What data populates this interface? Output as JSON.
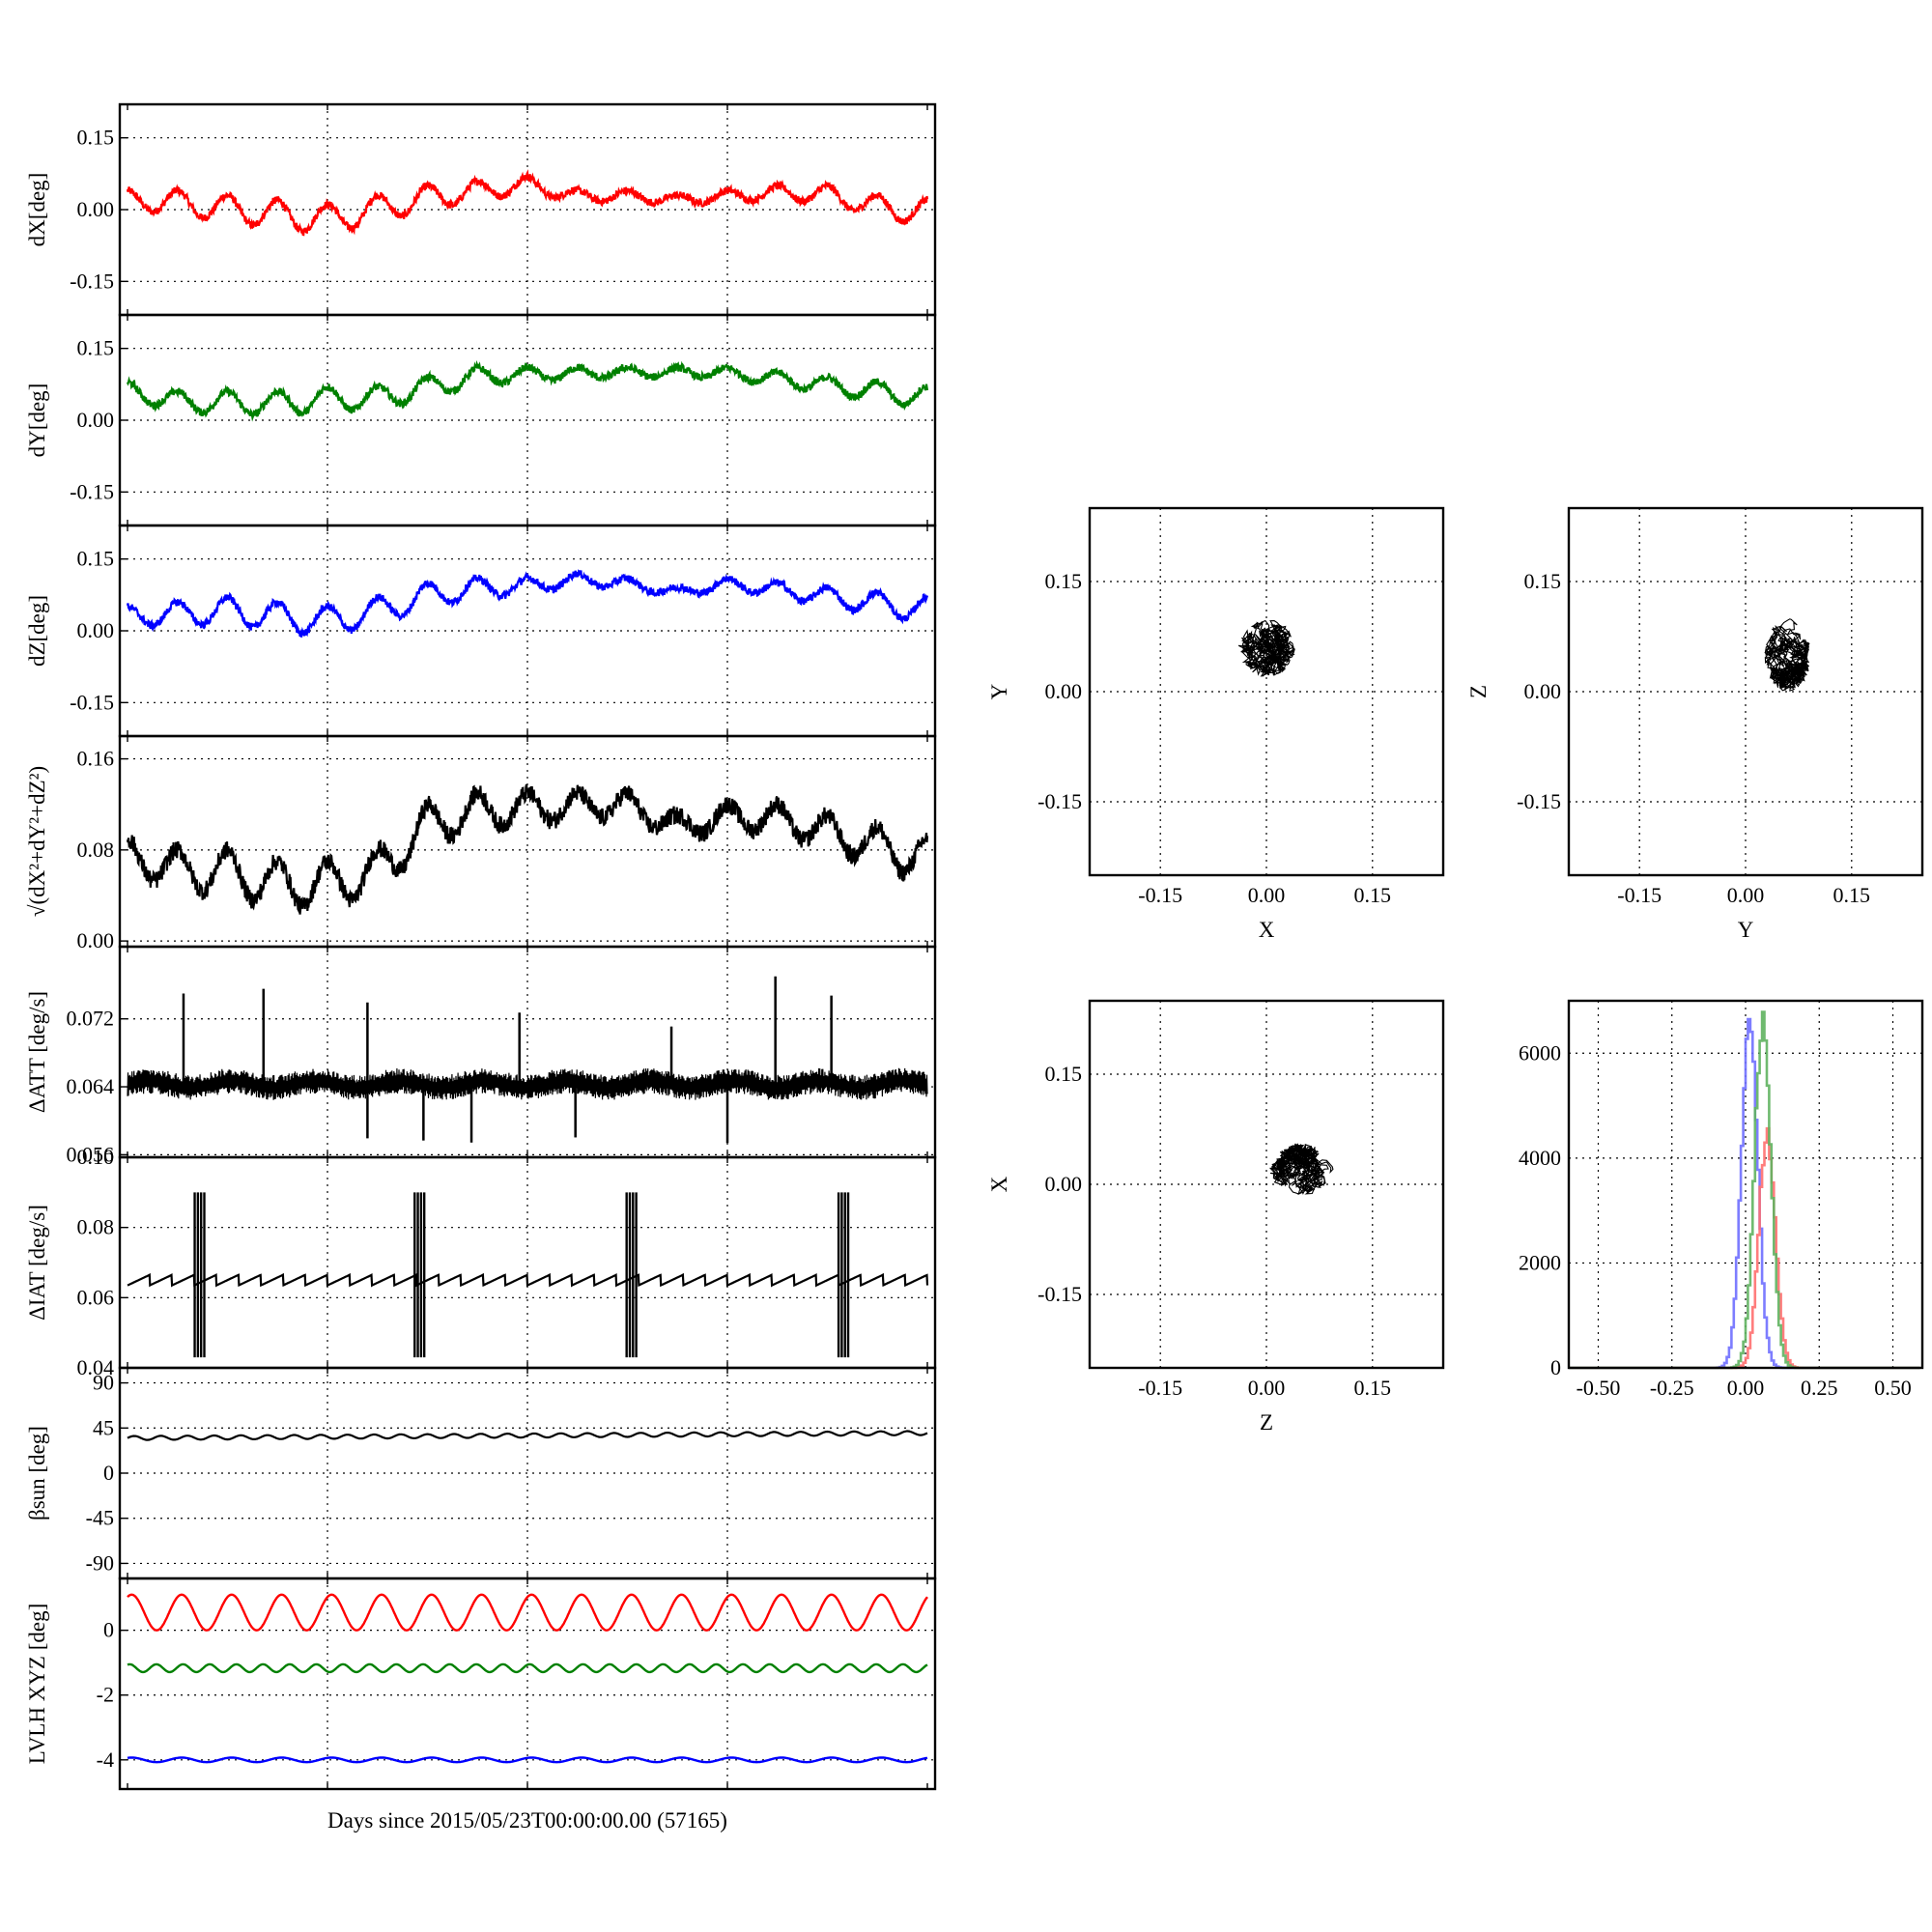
{
  "figure": {
    "xlabel": "Days since 2015/05/23T00:00:00.00 (57165)"
  },
  "chart_data": [
    {
      "type": "line",
      "panel": "dX",
      "ylabel": "dX[deg]",
      "ylim": [
        -0.22,
        0.22
      ],
      "yticks": [
        "0.15",
        "0.00",
        "-0.15"
      ],
      "ytick_values": [
        0.15,
        0.0,
        -0.15
      ],
      "series": [
        {
          "color": "#ff0000",
          "baseline": 0.0,
          "periods": 16,
          "amplitude": [
            0.02,
            0.06
          ],
          "noise": 0.008,
          "peaks": [
            0.04,
            0.04,
            0.03,
            0.02,
            0.01,
            0.03,
            0.05,
            0.06,
            0.07,
            0.04,
            0.04,
            0.03,
            0.04,
            0.05,
            0.05,
            0.03,
            0.02
          ]
        }
      ]
    },
    {
      "type": "line",
      "panel": "dY",
      "ylabel": "dY[deg]",
      "ylim": [
        -0.22,
        0.22
      ],
      "yticks": [
        "0.15",
        "0.00",
        "-0.15"
      ],
      "ytick_values": [
        0.15,
        0.0,
        -0.15
      ],
      "series": [
        {
          "color": "#008000",
          "baseline": 0.06,
          "periods": 16,
          "amplitude": [
            0.02,
            0.05
          ],
          "noise": 0.008,
          "peaks": [
            0.08,
            0.06,
            0.06,
            0.06,
            0.07,
            0.07,
            0.09,
            0.11,
            0.11,
            0.11,
            0.11,
            0.11,
            0.11,
            0.1,
            0.09,
            0.08,
            0.07
          ]
        }
      ]
    },
    {
      "type": "line",
      "panel": "dZ",
      "ylabel": "dZ[deg]",
      "ylim": [
        -0.22,
        0.22
      ],
      "yticks": [
        "0.15",
        "0.00",
        "-0.15"
      ],
      "ytick_values": [
        0.15,
        0.0,
        -0.15
      ],
      "series": [
        {
          "color": "#0000ff",
          "baseline": 0.04,
          "periods": 16,
          "amplitude": [
            0.02,
            0.06
          ],
          "noise": 0.008,
          "peaks": [
            0.05,
            0.06,
            0.07,
            0.06,
            0.05,
            0.07,
            0.1,
            0.11,
            0.11,
            0.12,
            0.11,
            0.09,
            0.11,
            0.1,
            0.09,
            0.08,
            0.07
          ]
        }
      ]
    },
    {
      "type": "line",
      "panel": "dR",
      "ylabel": "√(dX²+dY²+dZ²)",
      "ylim": [
        -0.005,
        0.18
      ],
      "yticks": [
        "0.16",
        "0.08",
        "0.00"
      ],
      "ytick_values": [
        0.16,
        0.08,
        0.0
      ],
      "series": [
        {
          "color": "#000000",
          "baseline": 0.08,
          "periods": 16,
          "amplitude": [
            0.02,
            0.04
          ],
          "noise": 0.008,
          "peaks": [
            0.09,
            0.08,
            0.08,
            0.07,
            0.07,
            0.08,
            0.12,
            0.13,
            0.13,
            0.13,
            0.13,
            0.11,
            0.12,
            0.12,
            0.11,
            0.1,
            0.09
          ]
        }
      ]
    },
    {
      "type": "line",
      "panel": "dATT",
      "ylabel": "ΔATT [deg/s]",
      "ylim": [
        0.0557,
        0.0805
      ],
      "yticks": [
        "0.072",
        "0.064",
        "0.056"
      ],
      "ytick_values": [
        0.072,
        0.064,
        0.056
      ],
      "series": [
        {
          "color": "#000000",
          "baseline": 0.0643,
          "band": 0.0015,
          "spikes_up": [
            0.07,
            0.17,
            0.3,
            0.49,
            0.68,
            0.81,
            0.88
          ],
          "spikes_down": [
            0.3,
            0.37,
            0.43,
            0.56,
            0.75
          ]
        }
      ]
    },
    {
      "type": "line",
      "panel": "dIAT",
      "ylabel": "ΔIAT [deg/s]",
      "ylim": [
        0.04,
        0.1
      ],
      "yticks": [
        "0.10",
        "0.08",
        "0.06",
        "0.04"
      ],
      "ytick_values": [
        0.1,
        0.08,
        0.06,
        0.04
      ],
      "series": [
        {
          "color": "#000000",
          "baseline": 0.065,
          "sawtooth_periods": 36,
          "bursts": [
            0.09,
            0.365,
            0.63,
            0.895
          ]
        }
      ]
    },
    {
      "type": "line",
      "panel": "beta_sun",
      "ylabel": "βsun [deg]",
      "ylim": [
        -105,
        105
      ],
      "yticks": [
        "90",
        "45",
        "0",
        "-45",
        "-90"
      ],
      "ytick_values": [
        90,
        45,
        0,
        -45,
        -90
      ],
      "series": [
        {
          "color": "#000000",
          "start": 35,
          "end": 40,
          "periods": 30,
          "amplitude": 2
        }
      ]
    },
    {
      "type": "line",
      "panel": "LVLH",
      "ylabel": "LVLH XYZ [deg]",
      "ylim": [
        -4.9,
        1.6
      ],
      "yticks": [
        "0",
        "-2",
        "-4"
      ],
      "ytick_values": [
        0,
        -2,
        -4
      ],
      "series": [
        {
          "color": "#ff0000",
          "baseline": 0.55,
          "periods": 16,
          "amplitude": 0.55
        },
        {
          "color": "#008000",
          "baseline": -1.17,
          "periods": 30,
          "amplitude": 0.12
        },
        {
          "color": "#0000ff",
          "baseline": -4.0,
          "periods": 16,
          "amplitude": 0.07
        }
      ]
    },
    {
      "type": "scatter",
      "panel": "XY",
      "xlabel": "X",
      "ylabel": "Y",
      "xlim": [
        -0.25,
        0.25
      ],
      "ylim": [
        -0.25,
        0.25
      ],
      "ticks": [
        "-0.15",
        "0.00",
        "0.15"
      ],
      "tick_values": [
        -0.15,
        0.0,
        0.15
      ],
      "cluster": {
        "cx": 0.0,
        "cy": 0.06,
        "rx": 0.04,
        "ry": 0.04
      }
    },
    {
      "type": "scatter",
      "panel": "YZ",
      "xlabel": "Y",
      "ylabel": "Z",
      "xlim": [
        -0.25,
        0.25
      ],
      "ylim": [
        -0.25,
        0.25
      ],
      "ticks": [
        "-0.15",
        "0.00",
        "0.15"
      ],
      "tick_values": [
        -0.15,
        0.0,
        0.15
      ],
      "cluster": {
        "cx": 0.06,
        "cy": 0.05,
        "rx": 0.033,
        "ry": 0.05
      }
    },
    {
      "type": "scatter",
      "panel": "ZX",
      "xlabel": "Z",
      "ylabel": "X",
      "xlim": [
        -0.25,
        0.25
      ],
      "ylim": [
        -0.25,
        0.25
      ],
      "ticks": [
        "-0.15",
        "0.00",
        "0.15"
      ],
      "tick_values": [
        -0.15,
        0.0,
        0.15
      ],
      "cluster": {
        "cx": 0.05,
        "cy": 0.02,
        "rx": 0.045,
        "ry": 0.035
      }
    },
    {
      "type": "histogram",
      "panel": "hist",
      "xlim": [
        -0.6,
        0.6
      ],
      "ylim": [
        0,
        7000
      ],
      "xticks": [
        "-0.50",
        "-0.25",
        "0.00",
        "0.25",
        "0.50"
      ],
      "xtick_values": [
        -0.5,
        -0.25,
        0.0,
        0.25,
        0.5
      ],
      "yticks": [
        "6000",
        "4000",
        "2000",
        "0"
      ],
      "ytick_values": [
        6000,
        4000,
        2000,
        0
      ],
      "series": [
        {
          "color": "#6f6fff",
          "center": 0.01,
          "sigma": 0.028,
          "peak": 6800
        },
        {
          "color": "#ff6f6f",
          "center": 0.07,
          "sigma": 0.028,
          "peak": 4700
        },
        {
          "color": "#5fb35f",
          "center": 0.055,
          "sigma": 0.028,
          "peak": 6950
        }
      ]
    }
  ]
}
